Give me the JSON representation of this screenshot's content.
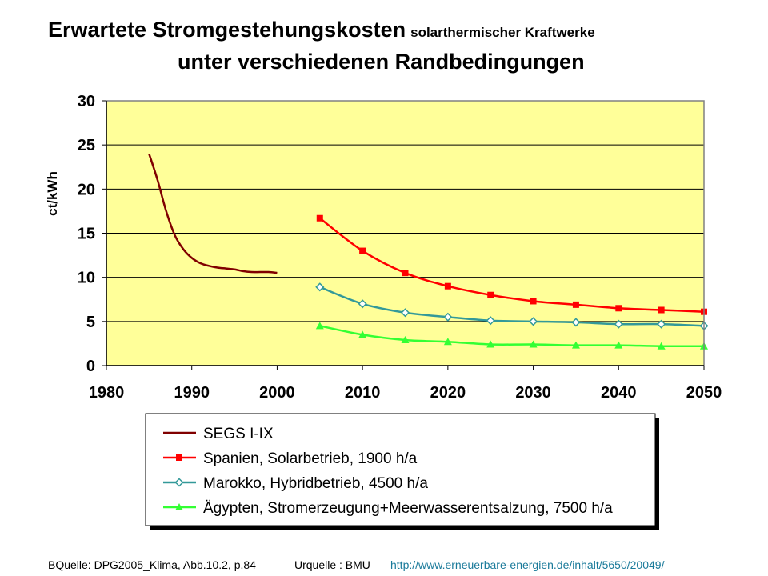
{
  "title": {
    "main": "Erwartete Stromgestehungskosten",
    "small": "solarthermischer Kraftwerke",
    "line2": "unter verschiedenen Randbedingungen"
  },
  "footer": {
    "source_left": "BQuelle: DPG2005_Klima, Abb.10.2, p.84",
    "source_right": "Urquelle : BMU",
    "link": " http://www.erneuerbare-energien.de/inhalt/5650/20049/"
  },
  "chart_data": {
    "type": "line",
    "title": "",
    "xlabel": "",
    "ylabel": "ct/kWh",
    "xlim": [
      1980,
      2050
    ],
    "ylim": [
      0,
      30
    ],
    "xticks": [
      1980,
      1990,
      2000,
      2010,
      2020,
      2030,
      2040,
      2050
    ],
    "yticks": [
      0,
      5,
      10,
      15,
      20,
      25,
      30
    ],
    "grid": "horizontal",
    "plot_background": "#ffff99",
    "legend_position": "below",
    "series": [
      {
        "name": "SEGS I-IX",
        "color": "#800000",
        "marker": "none",
        "x": [
          1985,
          1986,
          1987,
          1988,
          1989,
          1990,
          1991,
          1992,
          1993,
          1994,
          1995,
          1996,
          1997,
          1998,
          1999,
          2000
        ],
        "y": [
          24.0,
          21.0,
          17.5,
          14.8,
          13.2,
          12.2,
          11.6,
          11.3,
          11.1,
          11.0,
          10.9,
          10.7,
          10.6,
          10.6,
          10.6,
          10.5
        ]
      },
      {
        "name": "Spanien, Solarbetrieb, 1900 h/a",
        "color": "#ff0000",
        "marker": "square",
        "x": [
          2005,
          2010,
          2015,
          2020,
          2025,
          2030,
          2035,
          2040,
          2045,
          2050
        ],
        "y": [
          16.7,
          13.0,
          10.5,
          9.0,
          8.0,
          7.3,
          6.9,
          6.5,
          6.3,
          6.1
        ]
      },
      {
        "name": "Marokko, Hybridbetrieb, 4500 h/a",
        "color": "#339999",
        "marker": "diamond",
        "x": [
          2005,
          2010,
          2015,
          2020,
          2025,
          2030,
          2035,
          2040,
          2045,
          2050
        ],
        "y": [
          8.9,
          7.0,
          6.0,
          5.5,
          5.1,
          5.0,
          4.9,
          4.7,
          4.7,
          4.5
        ]
      },
      {
        "name": "Ägypten, Stromerzeugung+Meerwasserentsalzung, 7500 h/a",
        "color": "#33ff33",
        "marker": "triangle",
        "x": [
          2005,
          2010,
          2015,
          2020,
          2025,
          2030,
          2035,
          2040,
          2045,
          2050
        ],
        "y": [
          4.5,
          3.5,
          2.9,
          2.7,
          2.4,
          2.4,
          2.3,
          2.3,
          2.2,
          2.2
        ]
      }
    ]
  }
}
